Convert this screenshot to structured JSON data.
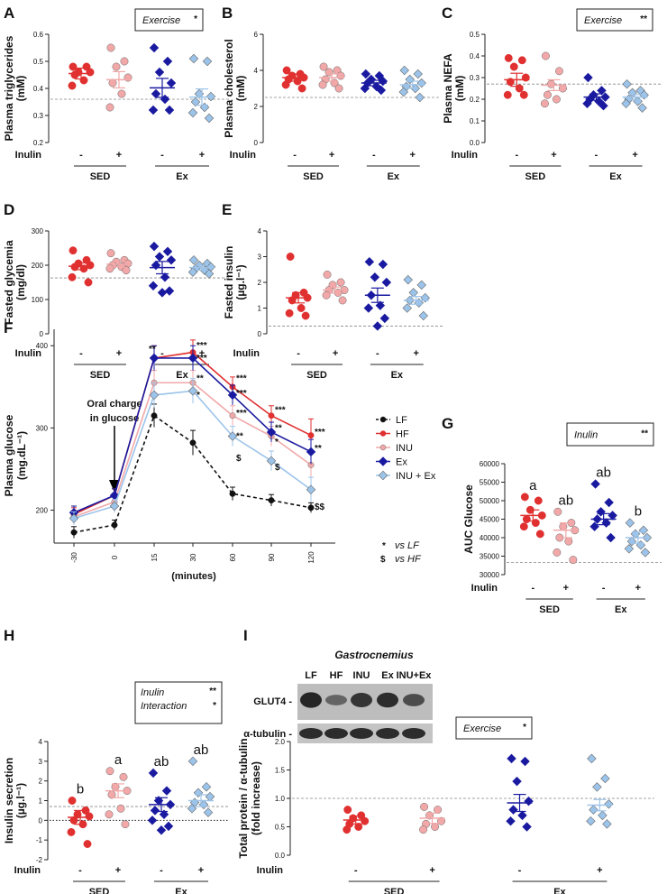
{
  "colors": {
    "LF": "#111111",
    "HF": "#e03030",
    "INU": "#f2a8a8",
    "Ex": "#1a1aa0",
    "INUEx": "#9cc4ea",
    "edge": "#666666"
  },
  "group_order": [
    "HF",
    "INU",
    "Ex",
    "INUEx"
  ],
  "common": {
    "inulin_label": "Inulin",
    "minus": "-",
    "plus": "+",
    "sed": "SED",
    "ex": "Ex"
  },
  "panels": {
    "A": {
      "letter": "A",
      "ylabel": "Plasma triglycerides (mM)",
      "ylim": [
        0.2,
        0.6
      ],
      "ticks": [
        "0.2",
        "0.3",
        "0.4",
        "0.5",
        "0.6"
      ],
      "ref": 0.36,
      "means": [
        0.455,
        0.432,
        0.402,
        0.368
      ],
      "sems": [
        0.02,
        0.03,
        0.035,
        0.03
      ],
      "stat_label": "Exercise",
      "stat_stars": "*",
      "points": [
        [
          0.48,
          0.48,
          0.46,
          0.46,
          0.45,
          0.43,
          0.41
        ],
        [
          0.55,
          0.5,
          0.48,
          0.44,
          0.42,
          0.38,
          0.33
        ],
        [
          0.55,
          0.5,
          0.46,
          0.42,
          0.38,
          0.36,
          0.32,
          0.32
        ],
        [
          0.51,
          0.5,
          0.38,
          0.37,
          0.35,
          0.33,
          0.31,
          0.29
        ]
      ]
    },
    "B": {
      "letter": "B",
      "ylabel": "Plasma cholesterol (mM)",
      "ylim": [
        0,
        6
      ],
      "ticks": [
        "0",
        "2",
        "4",
        "6"
      ],
      "ref": 2.5,
      "means": [
        3.6,
        3.6,
        3.3,
        3.2
      ],
      "sems": [
        0.2,
        0.2,
        0.15,
        0.2
      ],
      "points": [
        [
          4.0,
          3.8,
          3.7,
          3.6,
          3.5,
          3.4,
          3.2,
          3.0
        ],
        [
          4.2,
          4.0,
          3.9,
          3.7,
          3.5,
          3.3,
          3.2,
          3.0
        ],
        [
          3.8,
          3.7,
          3.5,
          3.4,
          3.3,
          3.1,
          3.0,
          2.9
        ],
        [
          4.0,
          3.8,
          3.5,
          3.3,
          3.1,
          3.0,
          2.8,
          2.5
        ]
      ]
    },
    "C": {
      "letter": "C",
      "ylabel": "Plasma NEFA (mM)",
      "ylim": [
        0,
        0.5
      ],
      "ticks": [
        "0.0",
        "0.1",
        "0.2",
        "0.3",
        "0.4",
        "0.5"
      ],
      "ref": 0.27,
      "means": [
        0.29,
        0.265,
        0.21,
        0.21
      ],
      "sems": [
        0.03,
        0.025,
        0.015,
        0.012
      ],
      "stat_label": "Exercise",
      "stat_stars": "**",
      "points": [
        [
          0.39,
          0.38,
          0.35,
          0.3,
          0.28,
          0.25,
          0.22,
          0.22
        ],
        [
          0.4,
          0.33,
          0.27,
          0.25,
          0.22,
          0.2,
          0.18
        ],
        [
          0.3,
          0.24,
          0.22,
          0.21,
          0.2,
          0.19,
          0.18,
          0.17
        ],
        [
          0.27,
          0.24,
          0.23,
          0.22,
          0.2,
          0.19,
          0.18,
          0.16
        ]
      ]
    },
    "D": {
      "letter": "D",
      "ylabel": "Fasted glycemia (mg/dl)",
      "ylim": [
        0,
        300
      ],
      "ticks": [
        "0",
        "100",
        "200",
        "300"
      ],
      "ref": 163,
      "means": [
        197,
        203,
        193,
        193
      ],
      "sems": [
        10,
        8,
        18,
        7
      ],
      "points": [
        [
          243,
          215,
          205,
          200,
          195,
          190,
          165,
          150
        ],
        [
          235,
          215,
          210,
          205,
          200,
          195,
          190,
          185
        ],
        [
          255,
          240,
          225,
          215,
          200,
          165,
          140,
          125,
          120
        ],
        [
          215,
          205,
          200,
          195,
          190,
          185,
          180,
          175
        ]
      ]
    },
    "E": {
      "letter": "E",
      "ylabel": "Fasted insulin (µg.l⁻¹)",
      "ylim": [
        0,
        4
      ],
      "ticks": [
        "0",
        "1",
        "2",
        "3",
        "4"
      ],
      "ref": 0.3,
      "means": [
        1.4,
        1.7,
        1.5,
        1.3
      ],
      "sems": [
        0.2,
        0.12,
        0.28,
        0.15
      ],
      "points": [
        [
          3.0,
          1.6,
          1.5,
          1.4,
          1.3,
          1.0,
          0.8,
          0.7
        ],
        [
          2.3,
          2.0,
          1.9,
          1.7,
          1.7,
          1.6,
          1.5,
          1.3
        ],
        [
          2.8,
          2.7,
          2.2,
          2.0,
          1.5,
          1.1,
          1.0,
          0.6,
          0.3
        ],
        [
          2.1,
          1.9,
          1.6,
          1.4,
          1.3,
          1.2,
          1.0,
          0.7
        ]
      ]
    },
    "G": {
      "letter": "G",
      "ylabel": "AUC Glucose",
      "ylim": [
        30000,
        60000
      ],
      "ticks": [
        "30000",
        "35000",
        "40000",
        "45000",
        "50000",
        "55000",
        "60000"
      ],
      "ref": 33300,
      "means": [
        46000,
        42000,
        45000,
        40000
      ],
      "sems": [
        1500,
        2000,
        1500,
        1500
      ],
      "stat_label": "Inulin",
      "stat_stars": "**",
      "letters": [
        "a",
        "ab",
        "ab",
        "b"
      ],
      "points": [
        [
          51000,
          50000,
          47500,
          46000,
          45000,
          44000,
          43000,
          41000
        ],
        [
          47000,
          44000,
          43000,
          42000,
          40000,
          39000,
          36000,
          34000
        ],
        [
          54500,
          49500,
          47000,
          46000,
          45000,
          44000,
          43000,
          40000
        ],
        [
          44000,
          42000,
          41000,
          40000,
          39000,
          38000,
          37000,
          36000
        ]
      ]
    },
    "H": {
      "letter": "H",
      "ylabel": "Insulin secretion (µg.l⁻¹)",
      "ylim": [
        -2,
        4
      ],
      "ticks": [
        "-2",
        "-1",
        "0",
        "1",
        "2",
        "3",
        "4"
      ],
      "ref": 0.7,
      "means": [
        0.15,
        1.5,
        0.8,
        1.0
      ],
      "sems": [
        0.35,
        0.35,
        0.35,
        0.3
      ],
      "stat_label": "Inulin",
      "stat_stars": "**",
      "stat_label2": "Interaction",
      "stat_stars2": "*",
      "letters": [
        "b",
        "a",
        "ab",
        "ab"
      ],
      "points": [
        [
          1.0,
          0.5,
          0.3,
          0.2,
          0.0,
          -0.2,
          -0.6,
          -1.2
        ],
        [
          2.5,
          2.2,
          1.7,
          1.5,
          1.3,
          0.6,
          0.3,
          -0.2
        ],
        [
          2.4,
          1.5,
          1.0,
          0.8,
          0.5,
          0.3,
          0.0,
          -0.3,
          -0.5
        ],
        [
          3.0,
          1.7,
          1.4,
          1.2,
          0.9,
          0.8,
          0.6,
          0.4
        ]
      ]
    },
    "I": {
      "letter": "I",
      "ylabel": "Total protein / α-tubulin (fold increase)",
      "ylim": [
        0,
        2
      ],
      "ticks": [
        "0.0",
        "0.5",
        "1.0",
        "1.5",
        "2.0"
      ],
      "ref": 1.0,
      "means": [
        0.62,
        0.65,
        0.92,
        0.88
      ],
      "sems": [
        0.07,
        0.09,
        0.15,
        0.1
      ],
      "stat_label": "Exercise",
      "stat_stars": "*",
      "points": [
        [
          0.8,
          0.7,
          0.65,
          0.6,
          0.55,
          0.5,
          0.45
        ],
        [
          0.85,
          0.8,
          0.7,
          0.6,
          0.55,
          0.5,
          0.45
        ],
        [
          1.7,
          1.65,
          1.3,
          0.95,
          0.8,
          0.7,
          0.6,
          0.5
        ],
        [
          1.7,
          1.35,
          1.2,
          0.9,
          0.8,
          0.7,
          0.6,
          0.55
        ]
      ],
      "title": "Gastrocnemius",
      "blot_labels": [
        "LF",
        "HF",
        "INU",
        "Ex",
        "INU+Ex"
      ],
      "glut4": "GLUT4 -",
      "tubulin": "α-tubulin -"
    }
  },
  "chart_data": {
    "type": "line",
    "letter": "F",
    "ylabel": "Plasma glucose (mg.dL⁻¹)",
    "xlabel": "(minutes)",
    "x": [
      "-30",
      "0",
      "15",
      "30",
      "60",
      "90",
      "120"
    ],
    "ylim": [
      160,
      420
    ],
    "yticks": [
      "200",
      "300",
      "400"
    ],
    "annotation": "Oral charge in glucose",
    "series": [
      {
        "name": "LF",
        "key": "LF",
        "values": [
          173,
          182,
          315,
          282,
          220,
          212,
          203
        ],
        "sem": [
          7,
          6,
          14,
          15,
          8,
          7,
          6
        ]
      },
      {
        "name": "HF",
        "key": "HF",
        "values": [
          195,
          218,
          385,
          392,
          350,
          315,
          291
        ],
        "sem": [
          8,
          8,
          15,
          15,
          12,
          12,
          20
        ]
      },
      {
        "name": "INU",
        "key": "INU",
        "values": [
          192,
          210,
          355,
          355,
          315,
          290,
          255
        ],
        "sem": [
          8,
          8,
          15,
          15,
          12,
          12,
          15
        ]
      },
      {
        "name": "Ex",
        "key": "Ex",
        "values": [
          197,
          218,
          385,
          385,
          340,
          295,
          271
        ],
        "sem": [
          8,
          8,
          15,
          15,
          12,
          12,
          15
        ]
      },
      {
        "name": "INU + Ex",
        "key": "INUEx",
        "values": [
          190,
          205,
          340,
          345,
          290,
          260,
          225
        ],
        "sem": [
          8,
          8,
          15,
          15,
          12,
          12,
          15
        ]
      }
    ],
    "stars_left": [
      {
        "i": 2,
        "v": 396,
        "t": "**"
      }
    ],
    "stars": [
      {
        "i": 3,
        "v": 400,
        "t": "***"
      },
      {
        "i": 3,
        "v": 385,
        "t": "***"
      },
      {
        "i": 3,
        "v": 360,
        "t": "**"
      },
      {
        "i": 3,
        "v": 340,
        "t": "*"
      },
      {
        "i": 4,
        "v": 360,
        "t": "***"
      },
      {
        "i": 4,
        "v": 342,
        "t": "***"
      },
      {
        "i": 4,
        "v": 318,
        "t": "***"
      },
      {
        "i": 4,
        "v": 290,
        "t": "**"
      },
      {
        "i": 4,
        "v": 263,
        "t": "$"
      },
      {
        "i": 5,
        "v": 322,
        "t": "***"
      },
      {
        "i": 5,
        "v": 300,
        "t": "**"
      },
      {
        "i": 5,
        "v": 283,
        "t": "*"
      },
      {
        "i": 5,
        "v": 252,
        "t": "$"
      },
      {
        "i": 6,
        "v": 295,
        "t": "***"
      },
      {
        "i": 6,
        "v": 275,
        "t": "**"
      },
      {
        "i": 6,
        "v": 204,
        "t": "$$"
      }
    ],
    "footnote1": "vs LF",
    "footnote2": "vs HF",
    "sym1": "*",
    "sym2": "$"
  }
}
